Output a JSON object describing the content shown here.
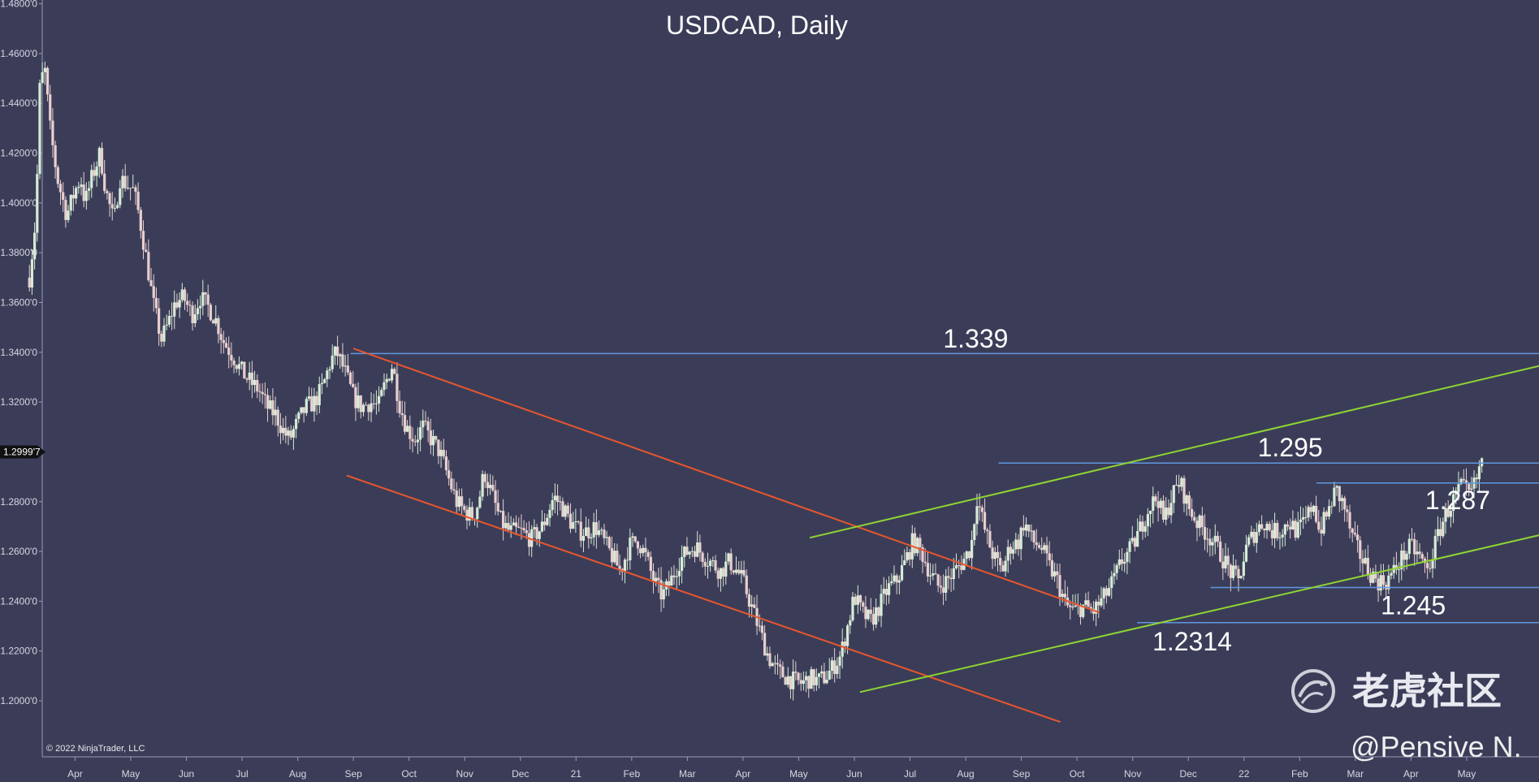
{
  "chart_data": {
    "type": "candlestick",
    "title": "USDCAD, Daily",
    "y_tick_labels": [
      "1.4800'0",
      "1.4600'0",
      "1.4400'0",
      "1.4200'0",
      "1.4000'0",
      "1.3800'0",
      "1.3600'0",
      "1.3400'0",
      "1.3200'0",
      "1.2800'0",
      "1.2600'0",
      "1.2400'0",
      "1.2200'0",
      "1.2000'0"
    ],
    "y_tick_values": [
      1.48,
      1.46,
      1.44,
      1.42,
      1.4,
      1.38,
      1.36,
      1.34,
      1.32,
      1.28,
      1.26,
      1.24,
      1.22,
      1.2
    ],
    "current_price_label": "1.2999'7",
    "current_price": 1.29997,
    "x_tick_labels": [
      "Apr",
      "May",
      "Jun",
      "Jul",
      "Aug",
      "Sep",
      "Oct",
      "Nov",
      "Dec",
      "21",
      "Feb",
      "Mar",
      "Apr",
      "May",
      "Jun",
      "Jul",
      "Aug",
      "Sep",
      "Oct",
      "Nov",
      "Dec",
      "22",
      "Feb",
      "Mar",
      "Apr",
      "May"
    ],
    "x_tick_months": [
      1,
      2,
      3,
      4,
      5,
      6,
      7,
      8,
      9,
      10,
      11,
      12,
      13,
      14,
      15,
      16,
      17,
      18,
      19,
      20,
      21,
      22,
      23,
      24,
      25,
      26
    ],
    "ylim": [
      1.1775,
      1.4815
    ],
    "xlim": [
      0.41,
      27.3
    ],
    "price_path": [
      [
        0.18,
        1.37
      ],
      [
        0.3,
        1.395
      ],
      [
        0.36,
        1.445
      ],
      [
        0.45,
        1.455
      ],
      [
        0.55,
        1.43
      ],
      [
        0.68,
        1.41
      ],
      [
        0.85,
        1.395
      ],
      [
        1.0,
        1.405
      ],
      [
        1.1,
        1.41
      ],
      [
        1.18,
        1.4
      ],
      [
        1.3,
        1.41
      ],
      [
        1.45,
        1.42
      ],
      [
        1.55,
        1.405
      ],
      [
        1.7,
        1.392
      ],
      [
        1.8,
        1.41
      ],
      [
        1.9,
        1.408
      ],
      [
        2.05,
        1.405
      ],
      [
        2.15,
        1.395
      ],
      [
        2.3,
        1.375
      ],
      [
        2.4,
        1.36
      ],
      [
        2.55,
        1.345
      ],
      [
        2.68,
        1.352
      ],
      [
        2.8,
        1.36
      ],
      [
        2.95,
        1.362
      ],
      [
        3.1,
        1.355
      ],
      [
        3.25,
        1.362
      ],
      [
        3.4,
        1.358
      ],
      [
        3.55,
        1.352
      ],
      [
        3.65,
        1.345
      ],
      [
        3.85,
        1.338
      ],
      [
        4.0,
        1.332
      ],
      [
        4.15,
        1.328
      ],
      [
        4.3,
        1.325
      ],
      [
        4.45,
        1.318
      ],
      [
        4.6,
        1.315
      ],
      [
        4.75,
        1.308
      ],
      [
        4.85,
        1.305
      ],
      [
        5.0,
        1.312
      ],
      [
        5.15,
        1.318
      ],
      [
        5.3,
        1.32
      ],
      [
        5.45,
        1.326
      ],
      [
        5.6,
        1.337
      ],
      [
        5.7,
        1.34
      ],
      [
        5.85,
        1.332
      ],
      [
        6.0,
        1.322
      ],
      [
        6.15,
        1.318
      ],
      [
        6.3,
        1.32
      ],
      [
        6.45,
        1.318
      ],
      [
        6.55,
        1.326
      ],
      [
        6.7,
        1.335
      ],
      [
        6.82,
        1.32
      ],
      [
        6.95,
        1.31
      ],
      [
        7.1,
        1.305
      ],
      [
        7.25,
        1.31
      ],
      [
        7.4,
        1.305
      ],
      [
        7.55,
        1.3
      ],
      [
        7.7,
        1.29
      ],
      [
        7.85,
        1.28
      ],
      [
        8.0,
        1.276
      ],
      [
        8.15,
        1.274
      ],
      [
        8.25,
        1.28
      ],
      [
        8.35,
        1.292
      ],
      [
        8.5,
        1.282
      ],
      [
        8.65,
        1.272
      ],
      [
        8.8,
        1.268
      ],
      [
        9.0,
        1.268
      ],
      [
        9.2,
        1.265
      ],
      [
        9.4,
        1.27
      ],
      [
        9.6,
        1.282
      ],
      [
        9.75,
        1.278
      ],
      [
        9.9,
        1.272
      ],
      [
        10.05,
        1.268
      ],
      [
        10.2,
        1.268
      ],
      [
        10.35,
        1.27
      ],
      [
        10.5,
        1.264
      ],
      [
        10.65,
        1.258
      ],
      [
        10.8,
        1.252
      ],
      [
        10.95,
        1.262
      ],
      [
        11.1,
        1.265
      ],
      [
        11.25,
        1.258
      ],
      [
        11.4,
        1.248
      ],
      [
        11.55,
        1.242
      ],
      [
        11.7,
        1.248
      ],
      [
        11.85,
        1.256
      ],
      [
        12.0,
        1.26
      ],
      [
        12.15,
        1.262
      ],
      [
        12.3,
        1.258
      ],
      [
        12.45,
        1.255
      ],
      [
        12.6,
        1.252
      ],
      [
        12.75,
        1.256
      ],
      [
        12.9,
        1.252
      ],
      [
        13.0,
        1.248
      ],
      [
        13.15,
        1.238
      ],
      [
        13.3,
        1.228
      ],
      [
        13.45,
        1.218
      ],
      [
        13.6,
        1.212
      ],
      [
        13.75,
        1.21
      ],
      [
        13.9,
        1.208
      ],
      [
        14.05,
        1.207
      ],
      [
        14.2,
        1.209
      ],
      [
        14.35,
        1.208
      ],
      [
        14.5,
        1.21
      ],
      [
        14.6,
        1.213
      ],
      [
        14.75,
        1.218
      ],
      [
        14.9,
        1.232
      ],
      [
        15.0,
        1.242
      ],
      [
        15.15,
        1.235
      ],
      [
        15.3,
        1.232
      ],
      [
        15.45,
        1.238
      ],
      [
        15.6,
        1.245
      ],
      [
        15.75,
        1.248
      ],
      [
        15.9,
        1.255
      ],
      [
        16.05,
        1.264
      ],
      [
        16.2,
        1.26
      ],
      [
        16.35,
        1.252
      ],
      [
        16.5,
        1.246
      ],
      [
        16.65,
        1.248
      ],
      [
        16.8,
        1.252
      ],
      [
        16.95,
        1.256
      ],
      [
        17.1,
        1.262
      ],
      [
        17.2,
        1.282
      ],
      [
        17.35,
        1.268
      ],
      [
        17.5,
        1.258
      ],
      [
        17.65,
        1.252
      ],
      [
        17.8,
        1.262
      ],
      [
        17.95,
        1.264
      ],
      [
        18.05,
        1.272
      ],
      [
        18.2,
        1.264
      ],
      [
        18.35,
        1.262
      ],
      [
        18.5,
        1.254
      ],
      [
        18.65,
        1.248
      ],
      [
        18.8,
        1.238
      ],
      [
        18.95,
        1.236
      ],
      [
        19.1,
        1.238
      ],
      [
        19.3,
        1.236
      ],
      [
        19.5,
        1.242
      ],
      [
        19.65,
        1.248
      ],
      [
        19.8,
        1.256
      ],
      [
        20.0,
        1.262
      ],
      [
        20.15,
        1.27
      ],
      [
        20.3,
        1.278
      ],
      [
        20.45,
        1.282
      ],
      [
        20.55,
        1.272
      ],
      [
        20.7,
        1.282
      ],
      [
        20.85,
        1.288
      ],
      [
        21.0,
        1.278
      ],
      [
        21.15,
        1.272
      ],
      [
        21.3,
        1.268
      ],
      [
        21.45,
        1.264
      ],
      [
        21.6,
        1.258
      ],
      [
        21.75,
        1.252
      ],
      [
        21.9,
        1.248
      ],
      [
        22.05,
        1.262
      ],
      [
        22.2,
        1.268
      ],
      [
        22.35,
        1.272
      ],
      [
        22.5,
        1.268
      ],
      [
        22.65,
        1.268
      ],
      [
        22.8,
        1.272
      ],
      [
        22.95,
        1.268
      ],
      [
        23.1,
        1.272
      ],
      [
        23.25,
        1.28
      ],
      [
        23.35,
        1.268
      ],
      [
        23.5,
        1.275
      ],
      [
        23.65,
        1.285
      ],
      [
        23.8,
        1.278
      ],
      [
        23.95,
        1.265
      ],
      [
        24.1,
        1.258
      ],
      [
        24.25,
        1.252
      ],
      [
        24.4,
        1.248
      ],
      [
        24.55,
        1.248
      ],
      [
        24.7,
        1.252
      ],
      [
        24.85,
        1.258
      ],
      [
        25.0,
        1.262
      ],
      [
        25.15,
        1.258
      ],
      [
        25.3,
        1.252
      ],
      [
        25.45,
        1.264
      ],
      [
        25.6,
        1.274
      ],
      [
        25.75,
        1.28
      ],
      [
        25.9,
        1.286
      ],
      [
        26.05,
        1.282
      ],
      [
        26.2,
        1.29
      ],
      [
        26.3,
        1.3
      ]
    ],
    "trend_lines": [
      {
        "color": "#e8562d",
        "from": [
          6.0,
          1.3415
        ],
        "to": [
          19.4,
          1.2355
        ]
      },
      {
        "color": "#e8562d",
        "from": [
          5.88,
          1.2905
        ],
        "to": [
          18.7,
          1.1915
        ]
      },
      {
        "color": "#8fd631",
        "from": [
          14.2,
          1.2655
        ],
        "to": [
          27.3,
          1.3345
        ]
      },
      {
        "color": "#8fd631",
        "from": [
          15.1,
          1.2035
        ],
        "to": [
          27.3,
          1.2665
        ]
      }
    ],
    "horizontal_levels": [
      {
        "label": "1.339",
        "value": 1.3395,
        "from_x": 5.95,
        "to_x": 27.3,
        "label_x": 17.18,
        "label_y": 1.3455
      },
      {
        "label": "1.295",
        "value": 1.2955,
        "from_x": 17.59,
        "to_x": 27.3,
        "label_x": 22.83,
        "label_y": 1.3017
      },
      {
        "label": "1.287",
        "value": 1.2875,
        "from_x": 23.3,
        "to_x": 27.3,
        "label_x": 25.84,
        "label_y": 1.2806
      },
      {
        "label": "1.245",
        "value": 1.2455,
        "from_x": 21.4,
        "to_x": 27.3,
        "label_x": 25.04,
        "label_y": 1.2383
      },
      {
        "label": "1.2314",
        "value": 1.2314,
        "from_x": 20.08,
        "to_x": 27.3,
        "label_x": 21.07,
        "label_y": 1.2238
      }
    ],
    "colors": {
      "background": "#3b3d58",
      "axis": "#9a9cb3",
      "candle_up": "#d6ecd6",
      "candle_down": "#e8cfcf",
      "level_line": "#5f98e0",
      "down_channel": "#e8562d",
      "up_channel": "#8fd631",
      "price_tag_bg": "#111111"
    }
  },
  "copyright": "© 2022 NinjaTrader, LLC",
  "watermark": {
    "brand_text": "老虎社区",
    "username": "@Pensive N.",
    "logo_icon": "tiger-paw-icon"
  }
}
